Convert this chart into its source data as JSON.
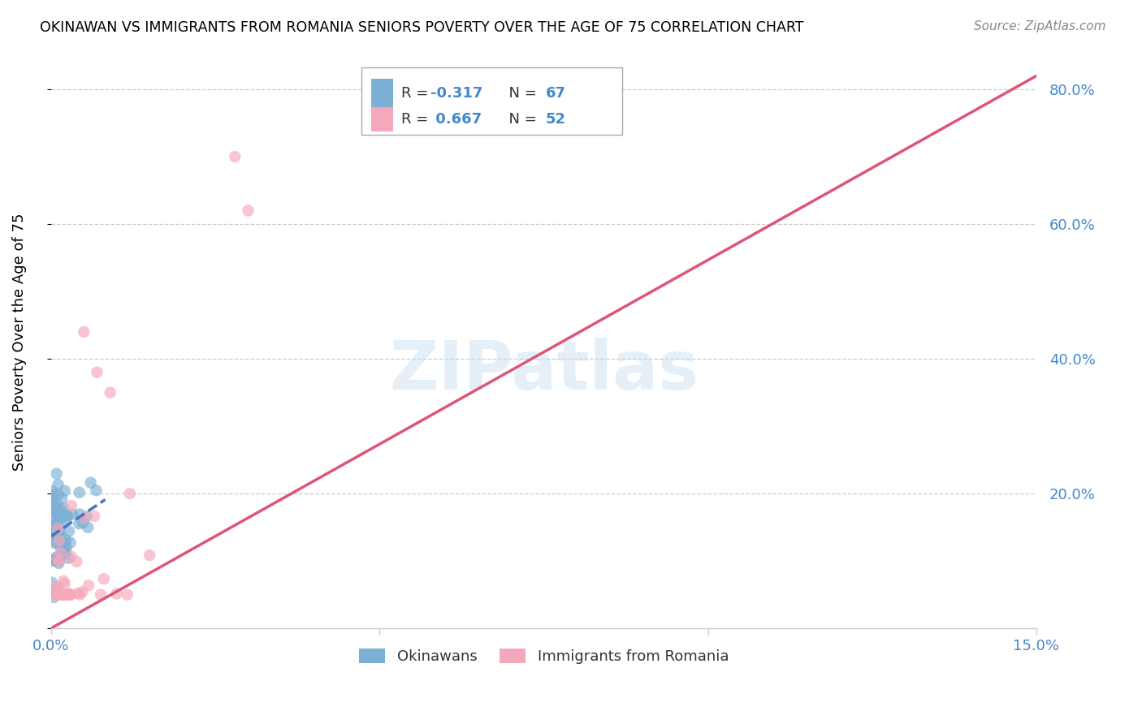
{
  "title": "OKINAWAN VS IMMIGRANTS FROM ROMANIA SENIORS POVERTY OVER THE AGE OF 75 CORRELATION CHART",
  "source": "Source: ZipAtlas.com",
  "ylabel": "Seniors Poverty Over the Age of 75",
  "xlabel_okinawan": "Okinawans",
  "xlabel_romania": "Immigrants from Romania",
  "xmin": 0.0,
  "xmax": 0.15,
  "ymin": 0.0,
  "ymax": 0.85,
  "color_okinawan": "#7bafd4",
  "color_romania": "#f5a8bc",
  "trendline_okinawan": "#4477bb",
  "trendline_romania": "#dd5577",
  "R_okinawan": -0.317,
  "N_okinawan": 67,
  "R_romania": 0.667,
  "N_romania": 52,
  "watermark": "ZIPatlas",
  "background_color": "#ffffff",
  "grid_color": "#cccccc",
  "axis_color": "#4488cc",
  "trendline_romania_x0": 0.0,
  "trendline_romania_y0": 0.0,
  "trendline_romania_x1": 0.15,
  "trendline_romania_y1": 0.82
}
